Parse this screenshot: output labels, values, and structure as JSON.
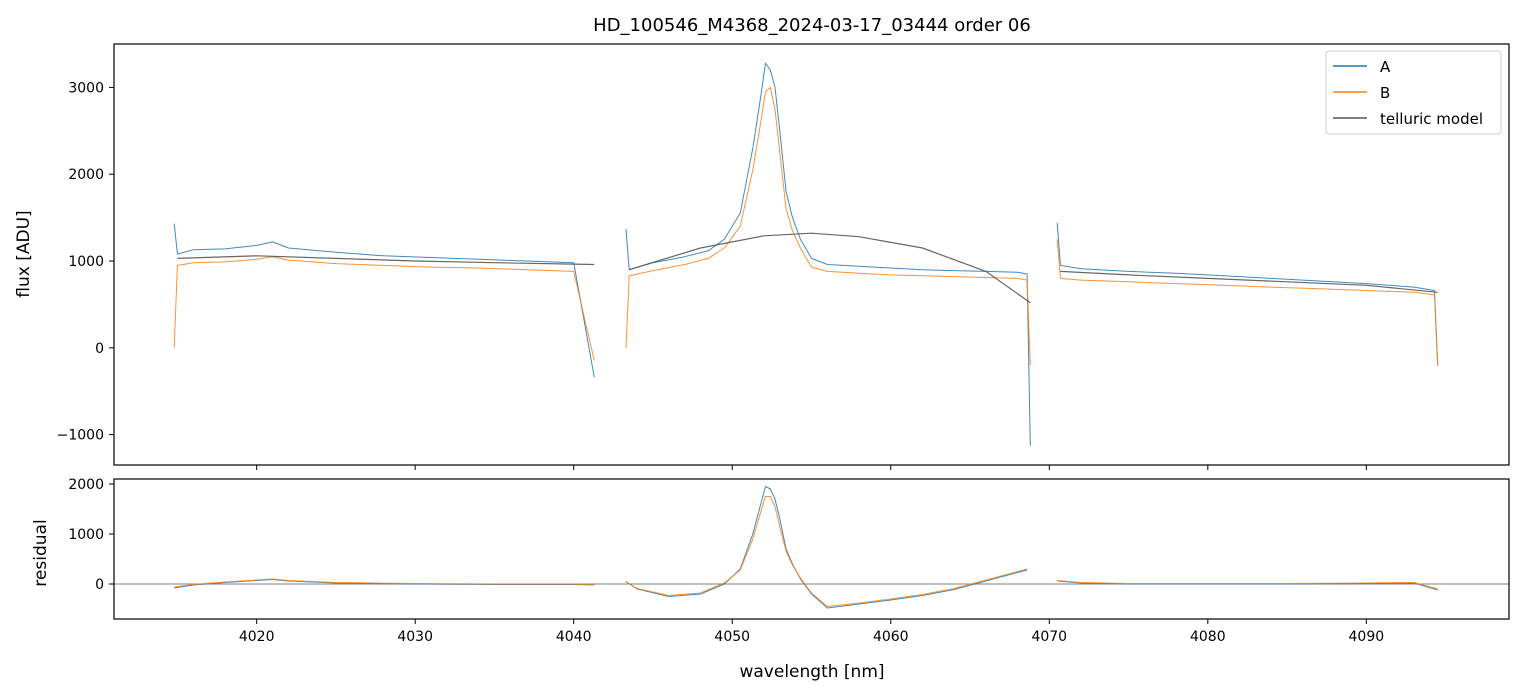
{
  "figure": {
    "title": "HD_100546_M4368_2024-03-17_03444  order 06"
  },
  "chart_data": [
    {
      "type": "line",
      "panel": "main",
      "title": "HD_100546_M4368_2024-03-17_03444  order 06",
      "xlabel": "",
      "ylabel": "flux [ADU]",
      "xlim": [
        4011,
        4099
      ],
      "ylim": [
        -1350,
        3500
      ],
      "xticks": [
        4020,
        4030,
        4040,
        4050,
        4060,
        4070,
        4080,
        4090
      ],
      "yticks": [
        -1000,
        0,
        1000,
        2000,
        3000
      ],
      "ytick_labels": [
        "−1000",
        "0",
        "1000",
        "2000",
        "3000"
      ],
      "legend_position": "top-right",
      "series": [
        {
          "name": "A",
          "color": "#1f77b4",
          "segments": [
            {
              "x": [
                4014.8,
                4015.0,
                4016,
                4018,
                4020,
                4021,
                4022,
                4025,
                4028,
                4031,
                4034,
                4037,
                4040,
                4041.3
              ],
              "y": [
                1430,
                1080,
                1130,
                1140,
                1180,
                1220,
                1150,
                1100,
                1060,
                1040,
                1020,
                1000,
                980,
                -340
              ]
            },
            {
              "x": [
                4043.3,
                4043.5,
                4045,
                4047,
                4048.5,
                4049.5,
                4050.5,
                4051.3,
                4051.8,
                4052.1,
                4052.4,
                4052.7,
                4053.0,
                4053.4,
                4053.8,
                4054.3,
                4055,
                4056,
                4058,
                4060,
                4062,
                4064,
                4066,
                4068,
                4068.6,
                4068.8
              ],
              "y": [
                1370,
                900,
                980,
                1050,
                1120,
                1250,
                1550,
                2300,
                2900,
                3280,
                3200,
                3000,
                2500,
                1800,
                1500,
                1250,
                1030,
                960,
                940,
                920,
                900,
                890,
                880,
                870,
                850,
                -1130
              ]
            },
            {
              "x": [
                4070.5,
                4070.7,
                4072,
                4075,
                4078,
                4081,
                4084,
                4087,
                4090,
                4093,
                4094.3,
                4094.5
              ],
              "y": [
                1440,
                950,
                910,
                880,
                860,
                830,
                800,
                770,
                740,
                700,
                660,
                -200
              ]
            }
          ]
        },
        {
          "name": "B",
          "color": "#ff7f0e",
          "segments": [
            {
              "x": [
                4014.8,
                4015.0,
                4016,
                4018,
                4020,
                4021,
                4022,
                4025,
                4028,
                4031,
                4034,
                4037,
                4040,
                4041.3
              ],
              "y": [
                0,
                950,
                980,
                990,
                1020,
                1050,
                1010,
                970,
                950,
                930,
                920,
                900,
                880,
                -150
              ]
            },
            {
              "x": [
                4043.3,
                4043.5,
                4045,
                4047,
                4048.5,
                4049.5,
                4050.5,
                4051.3,
                4051.8,
                4052.1,
                4052.4,
                4052.7,
                4053.0,
                4053.4,
                4053.8,
                4054.3,
                4055,
                4056,
                4058,
                4060,
                4062,
                4064,
                4066,
                4068,
                4068.6,
                4068.8
              ],
              "y": [
                0,
                830,
                890,
                960,
                1030,
                1150,
                1400,
                2050,
                2600,
                2950,
                3000,
                2750,
                2250,
                1600,
                1350,
                1150,
                930,
                880,
                860,
                840,
                830,
                820,
                810,
                800,
                780,
                -200
              ]
            },
            {
              "x": [
                4070.5,
                4070.7,
                4072,
                4075,
                4078,
                4081,
                4084,
                4087,
                4090,
                4093,
                4094.3,
                4094.5
              ],
              "y": [
                1250,
                800,
                780,
                760,
                740,
                720,
                700,
                680,
                660,
                640,
                610,
                -210
              ]
            }
          ]
        },
        {
          "name": "telluric model",
          "color": "#555555",
          "segments": [
            {
              "x": [
                4015,
                4020,
                4025,
                4030,
                4035,
                4041.3
              ],
              "y": [
                1030,
                1060,
                1030,
                1000,
                980,
                960
              ]
            },
            {
              "x": [
                4043.5,
                4048,
                4052,
                4055,
                4058,
                4062,
                4066,
                4068.8
              ],
              "y": [
                900,
                1150,
                1290,
                1320,
                1280,
                1150,
                880,
                520
              ]
            },
            {
              "x": [
                4070.7,
                4075,
                4080,
                4085,
                4090,
                4094.5
              ],
              "y": [
                880,
                840,
                800,
                760,
                720,
                640
              ]
            }
          ]
        }
      ]
    },
    {
      "type": "line",
      "panel": "residual",
      "xlabel": "wavelength [nm]",
      "ylabel": "residual",
      "xlim": [
        4011,
        4099
      ],
      "ylim": [
        -700,
        2100
      ],
      "xticks": [
        4020,
        4030,
        4040,
        4050,
        4060,
        4070,
        4080,
        4090
      ],
      "xtick_labels": [
        "4020",
        "4030",
        "4040",
        "4050",
        "4060",
        "4070",
        "4080",
        "4090"
      ],
      "yticks": [
        0,
        1000,
        2000
      ],
      "ytick_labels": [
        "0",
        "1000",
        "2000"
      ],
      "zero_line": true,
      "series": [
        {
          "name": "A",
          "color": "#1f77b4",
          "segments": [
            {
              "x": [
                4014.8,
                4016,
                4018,
                4020,
                4021,
                4022,
                4025,
                4030,
                4035,
                4040,
                4041.3
              ],
              "y": [
                -80,
                -20,
                30,
                70,
                90,
                60,
                20,
                0,
                -10,
                -10,
                -20
              ]
            },
            {
              "x": [
                4043.3,
                4044,
                4046,
                4048,
                4049.5,
                4050.5,
                4051.3,
                4051.8,
                4052.1,
                4052.4,
                4052.7,
                4053.0,
                4053.4,
                4053.8,
                4054.3,
                4055,
                4056,
                4058,
                4060,
                4062,
                4064,
                4066,
                4068,
                4068.6
              ],
              "y": [
                50,
                -100,
                -250,
                -200,
                0,
                300,
                1000,
                1600,
                1950,
                1900,
                1700,
                1300,
                700,
                400,
                100,
                -200,
                -480,
                -400,
                -320,
                -230,
                -110,
                60,
                230,
                280
              ]
            },
            {
              "x": [
                4070.5,
                4072,
                4075,
                4080,
                4085,
                4090,
                4093,
                4094.5
              ],
              "y": [
                60,
                20,
                0,
                0,
                0,
                10,
                20,
                -120
              ]
            }
          ]
        },
        {
          "name": "B",
          "color": "#ff7f0e",
          "segments": [
            {
              "x": [
                4014.8,
                4016,
                4018,
                4020,
                4021,
                4022,
                4025,
                4030,
                4035,
                4040,
                4041.3
              ],
              "y": [
                -60,
                -10,
                40,
                80,
                100,
                70,
                30,
                10,
                0,
                0,
                -10
              ]
            },
            {
              "x": [
                4043.3,
                4044,
                4046,
                4048,
                4049.5,
                4050.5,
                4051.3,
                4051.8,
                4052.1,
                4052.4,
                4052.7,
                4053.0,
                4053.4,
                4053.8,
                4054.3,
                4055,
                4056,
                4058,
                4060,
                4062,
                4064,
                4066,
                4068,
                4068.6
              ],
              "y": [
                40,
                -90,
                -230,
                -180,
                20,
                280,
                900,
                1450,
                1750,
                1750,
                1550,
                1150,
                650,
                380,
                120,
                -180,
                -450,
                -380,
                -300,
                -210,
                -90,
                80,
                250,
                300
              ]
            },
            {
              "x": [
                4070.5,
                4072,
                4075,
                4080,
                4085,
                4090,
                4093,
                4094.5
              ],
              "y": [
                70,
                30,
                10,
                10,
                10,
                20,
                30,
                -100
              ]
            }
          ]
        }
      ]
    }
  ]
}
